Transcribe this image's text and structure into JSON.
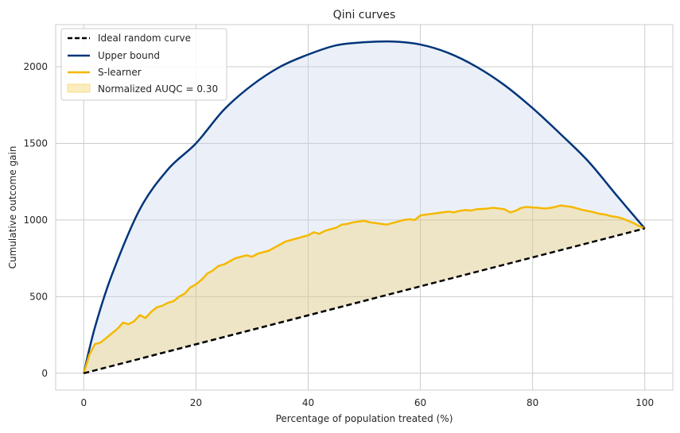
{
  "chart_data": {
    "type": "line",
    "title": "Qini curves",
    "xlabel": "Percentage of population treated (%)",
    "ylabel": "Cumulative outcome gain",
    "xlim": [
      -5,
      105
    ],
    "ylim": [
      -110,
      2275
    ],
    "xticks": [
      0,
      20,
      40,
      60,
      80,
      100
    ],
    "yticks": [
      0,
      500,
      1000,
      1500,
      2000
    ],
    "grid": true,
    "legend_position": "top-left",
    "series": [
      {
        "name": "Ideal random curve",
        "style": "dashed",
        "color": "#000000",
        "x": [
          0,
          100
        ],
        "y": [
          0,
          945
        ]
      },
      {
        "name": "Upper bound",
        "style": "solid",
        "color": "#00357a",
        "x": [
          0,
          2,
          5,
          10,
          15,
          20,
          25,
          30,
          35,
          40,
          45,
          50,
          55,
          60,
          65,
          70,
          75,
          80,
          85,
          90,
          95,
          100
        ],
        "y": [
          0,
          300,
          640,
          1070,
          1330,
          1500,
          1720,
          1880,
          2000,
          2080,
          2140,
          2160,
          2165,
          2145,
          2090,
          2000,
          1880,
          1730,
          1560,
          1380,
          1160,
          945
        ]
      },
      {
        "name": "S-learner",
        "style": "solid",
        "color": "#f5b800",
        "x": [
          0,
          1,
          2,
          3,
          4,
          5,
          6,
          7,
          8,
          9,
          10,
          11,
          12,
          13,
          14,
          15,
          16,
          17,
          18,
          19,
          20,
          21,
          22,
          23,
          24,
          25,
          26,
          27,
          28,
          29,
          30,
          31,
          32,
          33,
          34,
          35,
          36,
          37,
          38,
          39,
          40,
          41,
          42,
          43,
          44,
          45,
          46,
          47,
          48,
          49,
          50,
          51,
          52,
          53,
          54,
          55,
          56,
          57,
          58,
          59,
          60,
          61,
          62,
          63,
          64,
          65,
          66,
          67,
          68,
          69,
          70,
          71,
          72,
          73,
          74,
          75,
          76,
          77,
          78,
          79,
          80,
          81,
          82,
          83,
          84,
          85,
          86,
          87,
          88,
          89,
          90,
          91,
          92,
          93,
          94,
          95,
          96,
          97,
          98,
          99,
          100
        ],
        "y": [
          0,
          120,
          190,
          200,
          230,
          260,
          290,
          330,
          320,
          340,
          380,
          360,
          400,
          430,
          440,
          460,
          470,
          500,
          520,
          560,
          580,
          610,
          650,
          670,
          700,
          710,
          730,
          750,
          760,
          770,
          760,
          780,
          790,
          800,
          820,
          840,
          860,
          870,
          880,
          890,
          900,
          920,
          910,
          930,
          940,
          950,
          970,
          975,
          985,
          990,
          995,
          985,
          980,
          975,
          970,
          980,
          990,
          1000,
          1005,
          1000,
          1030,
          1035,
          1040,
          1045,
          1050,
          1055,
          1050,
          1060,
          1065,
          1062,
          1070,
          1072,
          1075,
          1080,
          1075,
          1070,
          1050,
          1060,
          1080,
          1085,
          1082,
          1080,
          1075,
          1078,
          1085,
          1095,
          1090,
          1085,
          1075,
          1065,
          1058,
          1050,
          1040,
          1035,
          1025,
          1020,
          1010,
          995,
          980,
          960,
          945
        ]
      }
    ],
    "fill": {
      "name": "Normalized AUQC = 0.30",
      "color": "#f5b800",
      "between": [
        "S-learner",
        "Ideal random curve"
      ]
    },
    "upper_fill_color": "#c7d3ea"
  }
}
